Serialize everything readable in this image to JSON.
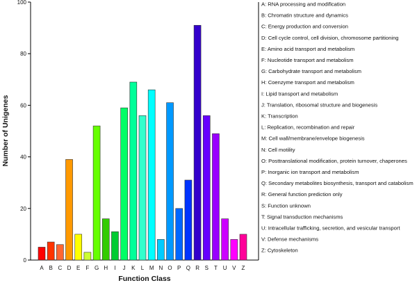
{
  "chart_data": {
    "type": "bar",
    "xlabel": "Function Class",
    "ylabel": "Number of Unigenes",
    "ylim": [
      0,
      100
    ],
    "yticks": [
      0,
      20,
      40,
      60,
      80,
      100
    ],
    "grid": false,
    "legend_position": "right",
    "categories": [
      "A",
      "B",
      "C",
      "D",
      "E",
      "F",
      "G",
      "H",
      "I",
      "J",
      "K",
      "L",
      "M",
      "N",
      "O",
      "P",
      "Q",
      "R",
      "S",
      "T",
      "U",
      "V",
      "Z"
    ],
    "values": [
      5,
      7,
      6,
      39,
      10,
      3,
      52,
      16,
      11,
      59,
      69,
      56,
      66,
      8,
      61,
      20,
      31,
      91,
      56,
      49,
      16,
      8,
      10
    ],
    "colors": [
      "#ff0000",
      "#ff3300",
      "#ff6633",
      "#ff9900",
      "#ffff00",
      "#ccff33",
      "#66ff00",
      "#33cc00",
      "#00cc33",
      "#00ff66",
      "#00ff99",
      "#33ffcc",
      "#00ffff",
      "#00ccff",
      "#0099ff",
      "#0066ff",
      "#0033ff",
      "#3300cc",
      "#6600ff",
      "#9900ff",
      "#cc00ff",
      "#ff00ff",
      "#ff0099"
    ],
    "legend": [
      "A: RNA processing and modification",
      "B: Chromatin structure and dynamics",
      "C: Energy production and conversion",
      "D: Cell cycle control, cell division, chromosome partitioning",
      "E: Amino acid transport and metabolism",
      "F: Nucleotide transport and metabolism",
      "G: Carbohydrate transport and metabolism",
      "H: Coenzyme transport and metabolism",
      "I: Lipid transport and metabolism",
      "J: Translation, ribosomal structure and biogenesis",
      "K: Transcription",
      "L: Replication, recombination and repair",
      "M: Cell wall/membrane/envelope biogenesis",
      "N: Cell motility",
      "O: Posttranslational modification, protein turnover, chaperones",
      "P: Inorganic ion transport and metabolism",
      "Q: Secondary metabolites biosynthesis, transport and catabolism",
      "R: General function prediction only",
      "S: Function unknown",
      "T: Signal transduction mechanisms",
      "U: Intracellular trafficking, secretion, and vesicular transport",
      "V: Defense mechanisms",
      "Z: Cytoskeleton"
    ]
  }
}
